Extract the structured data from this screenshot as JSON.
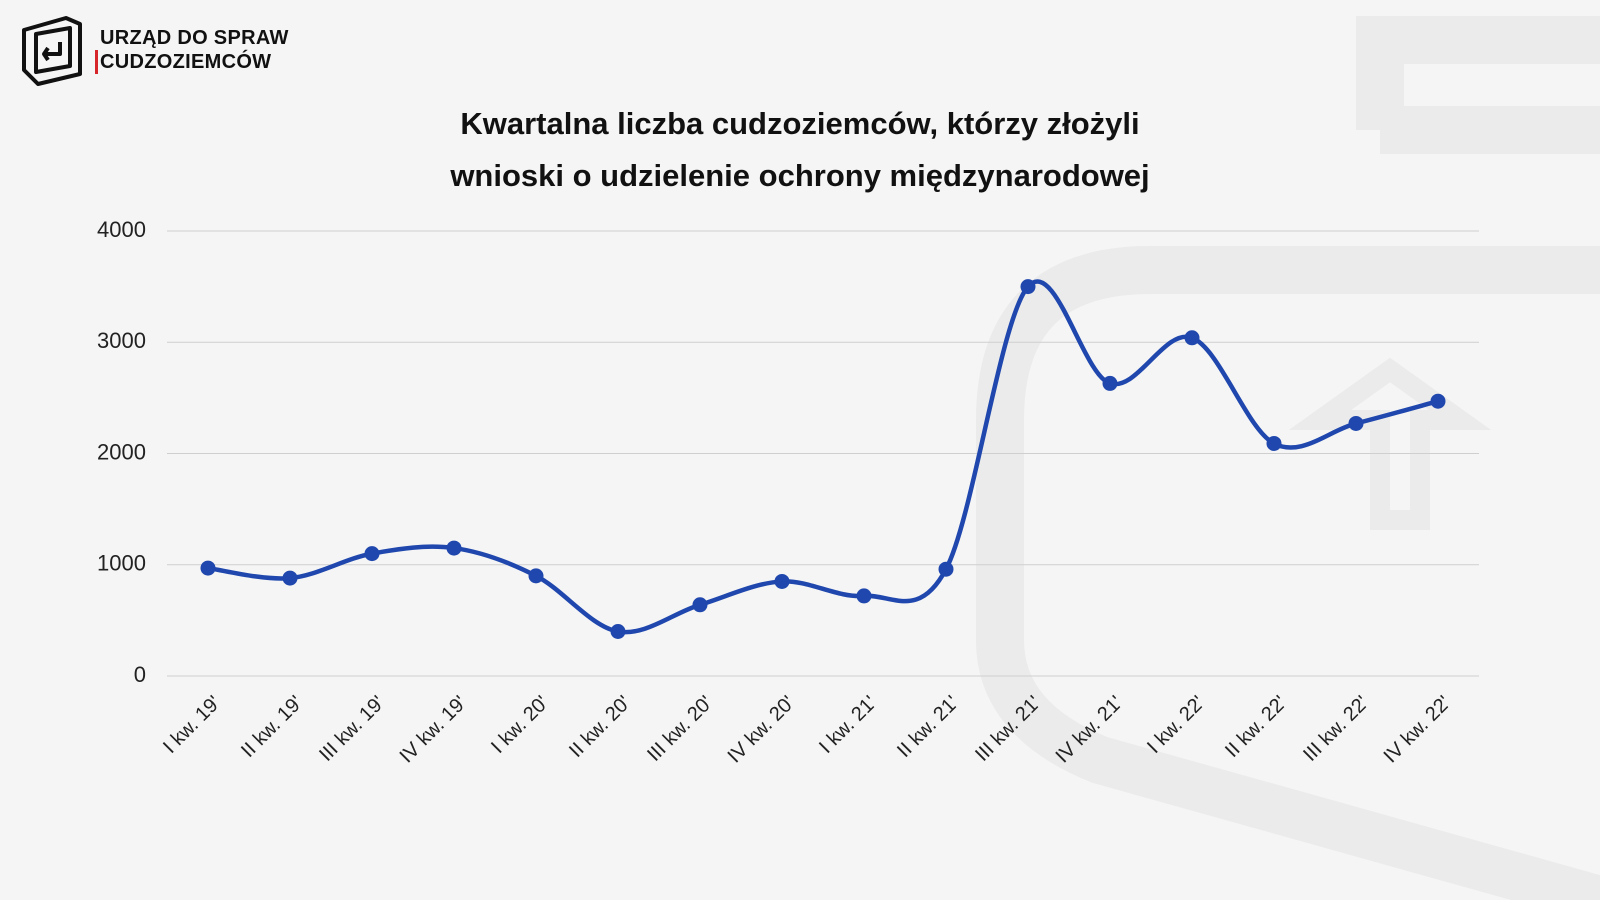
{
  "logo": {
    "line1": "URZĄD DO SPRAW",
    "line2": "CUDZOZIEMCÓW"
  },
  "chart_data": {
    "type": "line",
    "title": "Kwartalna liczba cudzoziemców, którzy złożyli\nwnioski o udzielenie ochrony międzynarodowej",
    "categories": [
      "I kw. 19'",
      "II kw. 19'",
      "III kw. 19'",
      "IV kw. 19'",
      "I kw. 20'",
      "II kw. 20'",
      "III kw. 20'",
      "IV kw. 20'",
      "I kw. 21'",
      "II kw. 21'",
      "III kw. 21'",
      "IV kw. 21'",
      "I kw. 22'",
      "II kw. 22'",
      "III kw. 22'",
      "IV kw. 22'"
    ],
    "series": [
      {
        "color": "#1f47ad",
        "values": [
          970,
          880,
          1100,
          1150,
          900,
          400,
          640,
          850,
          720,
          960,
          3500,
          2630,
          3040,
          2090,
          2270,
          2470
        ]
      }
    ],
    "ylim": [
      0,
      4000
    ],
    "yticks": [
      0,
      1000,
      2000,
      3000,
      4000
    ],
    "grid": true
  }
}
